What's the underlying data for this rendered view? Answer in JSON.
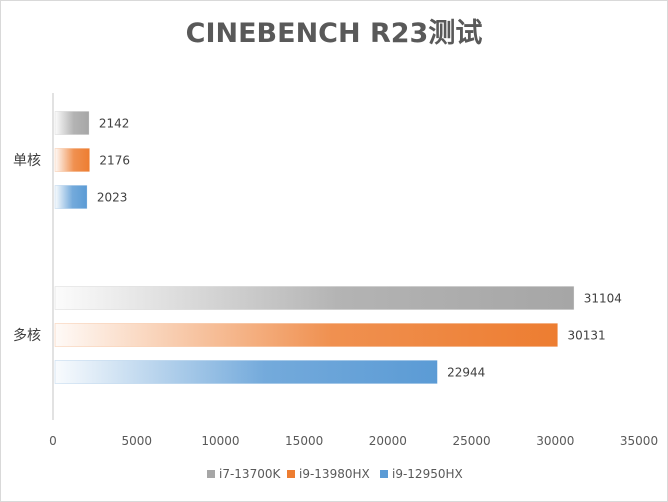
{
  "chart_data": {
    "type": "bar",
    "orientation": "horizontal",
    "title": "CINEBENCH R23测试",
    "categories": [
      "单核",
      "多核"
    ],
    "series": [
      {
        "name": "i7-13700K",
        "values": [
          2142,
          31104
        ],
        "color": "#a6a6a6"
      },
      {
        "name": "i9-13980HX",
        "values": [
          2176,
          30131
        ],
        "color": "#ed7d31"
      },
      {
        "name": "i9-12950HX",
        "values": [
          2023,
          22944
        ],
        "color": "#5b9bd5"
      }
    ],
    "xlim": [
      0,
      35000
    ],
    "xticks": [
      "0",
      "5000",
      "10000",
      "15000",
      "20000",
      "25000",
      "30000",
      "35000"
    ],
    "gridlines": false,
    "legend_position": "bottom"
  }
}
